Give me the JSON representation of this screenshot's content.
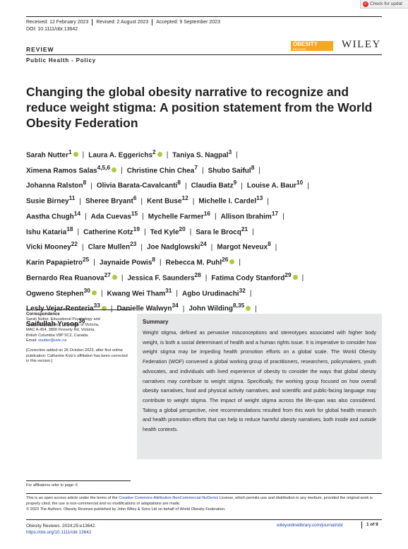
{
  "badge": {
    "label": "Check for updat"
  },
  "dates": [
    "Received: 12 February 2023",
    "Revised: 2 August 2023",
    "Accepted: 9 September 2023"
  ],
  "doi": "DOI: 10.1111/obr.13642",
  "article_type": "REVIEW",
  "section": "Public Health - Policy",
  "journal_logo": {
    "text": "OBESITY",
    "sub": "REVIEWS",
    "color": "#f5a623"
  },
  "publisher": "WILEY",
  "title": "Changing the global obesity narrative to recognize and reduce weight stigma: A position statement from the World Obesity Federation",
  "authors": [
    {
      "name": "Sarah Nutter",
      "aff": "1",
      "orcid": true
    },
    {
      "name": "Laura A. Eggerichs",
      "aff": "2",
      "orcid": true
    },
    {
      "name": "Taniya S. Nagpal",
      "aff": "3",
      "orcid": false
    },
    {
      "name": "Ximena Ramos Salas",
      "aff": "4,5,6",
      "orcid": true
    },
    {
      "name": "Christine Chin Chea",
      "aff": "7",
      "orcid": false
    },
    {
      "name": "Shubo Saiful",
      "aff": "8",
      "orcid": false
    },
    {
      "name": "Johanna Ralston",
      "aff": "8",
      "orcid": false
    },
    {
      "name": "Olivia Barata-Cavalcanti",
      "aff": "8",
      "orcid": false
    },
    {
      "name": "Claudia Batz",
      "aff": "9",
      "orcid": false
    },
    {
      "name": "Louise A. Baur",
      "aff": "10",
      "orcid": false
    },
    {
      "name": "Susie Birney",
      "aff": "11",
      "orcid": false
    },
    {
      "name": "Sheree Bryant",
      "aff": "6",
      "orcid": false
    },
    {
      "name": "Kent Buse",
      "aff": "12",
      "orcid": false
    },
    {
      "name": "Michelle I. Cardel",
      "aff": "13",
      "orcid": false
    },
    {
      "name": "Aastha Chugh",
      "aff": "14",
      "orcid": false
    },
    {
      "name": "Ada Cuevas",
      "aff": "15",
      "orcid": false
    },
    {
      "name": "Mychelle Farmer",
      "aff": "16",
      "orcid": false
    },
    {
      "name": "Allison Ibrahim",
      "aff": "17",
      "orcid": false
    },
    {
      "name": "Ishu Kataria",
      "aff": "18",
      "orcid": false
    },
    {
      "name": "Catherine Kotz",
      "aff": "19",
      "orcid": false
    },
    {
      "name": "Ted Kyle",
      "aff": "20",
      "orcid": false
    },
    {
      "name": "Sara le Brocq",
      "aff": "21",
      "orcid": false
    },
    {
      "name": "Vicki Mooney",
      "aff": "22",
      "orcid": false
    },
    {
      "name": "Clare Mullen",
      "aff": "23",
      "orcid": false
    },
    {
      "name": "Joe Nadglowski",
      "aff": "24",
      "orcid": false
    },
    {
      "name": "Margot Neveux",
      "aff": "8",
      "orcid": false
    },
    {
      "name": "Karin Papapietro",
      "aff": "25",
      "orcid": false
    },
    {
      "name": "Jaynaide Powis",
      "aff": "8",
      "orcid": false
    },
    {
      "name": "Rebecca M. Puhl",
      "aff": "26",
      "orcid": true
    },
    {
      "name": "Bernardo Rea Ruanova",
      "aff": "27",
      "orcid": true
    },
    {
      "name": "Jessica F. Saunders",
      "aff": "28",
      "orcid": false
    },
    {
      "name": "Fatima Cody Stanford",
      "aff": "29",
      "orcid": true
    },
    {
      "name": "Ogweno Stephen",
      "aff": "30",
      "orcid": true
    },
    {
      "name": "Kwang Wei Tham",
      "aff": "31",
      "orcid": false
    },
    {
      "name": "Agbo Urudinachi",
      "aff": "32",
      "orcid": false
    },
    {
      "name": "Lesly Vejar-Renteria",
      "aff": "33",
      "orcid": true
    },
    {
      "name": "Danielle Walwyn",
      "aff": "34",
      "orcid": false
    },
    {
      "name": "John Wilding",
      "aff": "8,35",
      "orcid": true
    },
    {
      "name": "Saifullah Yusop",
      "aff": "36",
      "orcid": false
    }
  ],
  "author_lines": [
    [
      0,
      1,
      2
    ],
    [
      3,
      4,
      5
    ],
    [
      6,
      7,
      8,
      9
    ],
    [
      10,
      11,
      12,
      13
    ],
    [
      14,
      15,
      16,
      17
    ],
    [
      18,
      19,
      20,
      21
    ],
    [
      22,
      23,
      24,
      25
    ],
    [
      26,
      27,
      28
    ],
    [
      29,
      30,
      31
    ],
    [
      32,
      33,
      34
    ],
    [
      35,
      36,
      37
    ],
    [
      38
    ]
  ],
  "correspondence": {
    "title": "Correspondence",
    "lines": [
      "Sarah Nutter, Educational Psychology and",
      "Leadership Studies, University of Victoria,",
      "MAC A-454, 3800 Finnerty Rd, Victoria,",
      "British Columbia V8P 5C2, Canada."
    ],
    "email_label": "Email: ",
    "email": "snutter@uvic.ca",
    "note": "[Correction added on 26 October 2023, after first online publication: Catherine Kotz's affiliation has been corrected in this version.]"
  },
  "summary": {
    "heading": "Summary",
    "text": "Weight stigma, defined as pervasive misconceptions and stereotypes associated with higher body weight, is both a social determinant of health and a human rights issue. It is imperative to consider how weight stigma may be impeding health promotion efforts on a global scale. The World Obesity Federation (WOF) convened a global working group of practitioners, researchers, policymakers, youth advocates, and individuals with lived experience of obesity to consider the ways that global obesity narratives may contribute to weight stigma. Specifically, the working group focused on how overall obesity narratives, food and physical activity narratives, and scientific and public-facing language may contribute to weight stigma. The impact of weight stigma across the life-span was also considered. Taking a global perspective, nine recommendations resulted from this work for global health research and health promotion efforts that can help to reduce harmful obesity narratives, both inside and outside health contexts."
  },
  "affiliations_note": "For affiliations refer to page: 6",
  "license": {
    "pre": "This is an open access article under the terms of the ",
    "link": "Creative Commons Attribution-NonCommercial-NoDerivs",
    "post": " License, which permits use and distribution in any medium, provided the original work is properly cited, the use is non-commercial and no modifications or adaptations are made.",
    "copyright": "© 2023 The Authors. Obesity Reviews published by John Wiley & Sons Ltd on behalf of World Obesity Federation."
  },
  "footer": {
    "citation": "Obesity Reviews. 2024;25:e13642.",
    "doi_url": "https://doi.org/10.1111/obr.13642",
    "site": "wileyonlinelibrary.com/journal/obr",
    "page": "1 of 9"
  }
}
